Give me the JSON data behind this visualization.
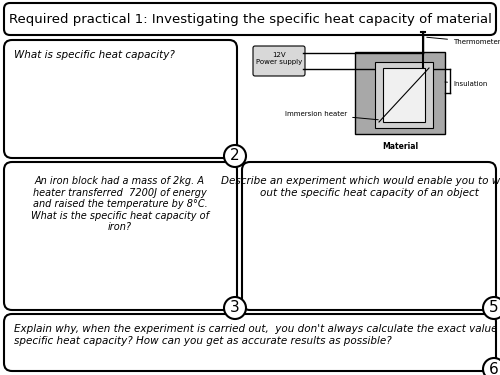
{
  "title": "Required practical 1: Investigating the specific heat capacity of material",
  "title_fontsize": 9.5,
  "background_color": "#ffffff",
  "box1_text": "What is specific heat capacity?",
  "box1_mark": "2",
  "box2_text": "An iron block had a mass of 2kg. A\nheater transferred  7200J of energy\nand raised the temperature by 8°C.\nWhat is the specific heat capacity of\niron?",
  "box2_mark": "3",
  "box3_text": "Describe an experiment which would enable you to work\nout the specific heat capacity of an object",
  "box3_mark": "5",
  "box4_text": "Explain why, when the experiment is carried out,  you don't always calculate the exact value of the\nspecific heat capacity? How can you get as accurate results as possible?",
  "box4_mark": "6",
  "diagram_labels": {
    "power_supply": "12V\nPower supply",
    "thermometer": "Thermometer",
    "insulation": "Insulation",
    "immersion_heater": "Immersion heater",
    "material": "Material"
  }
}
